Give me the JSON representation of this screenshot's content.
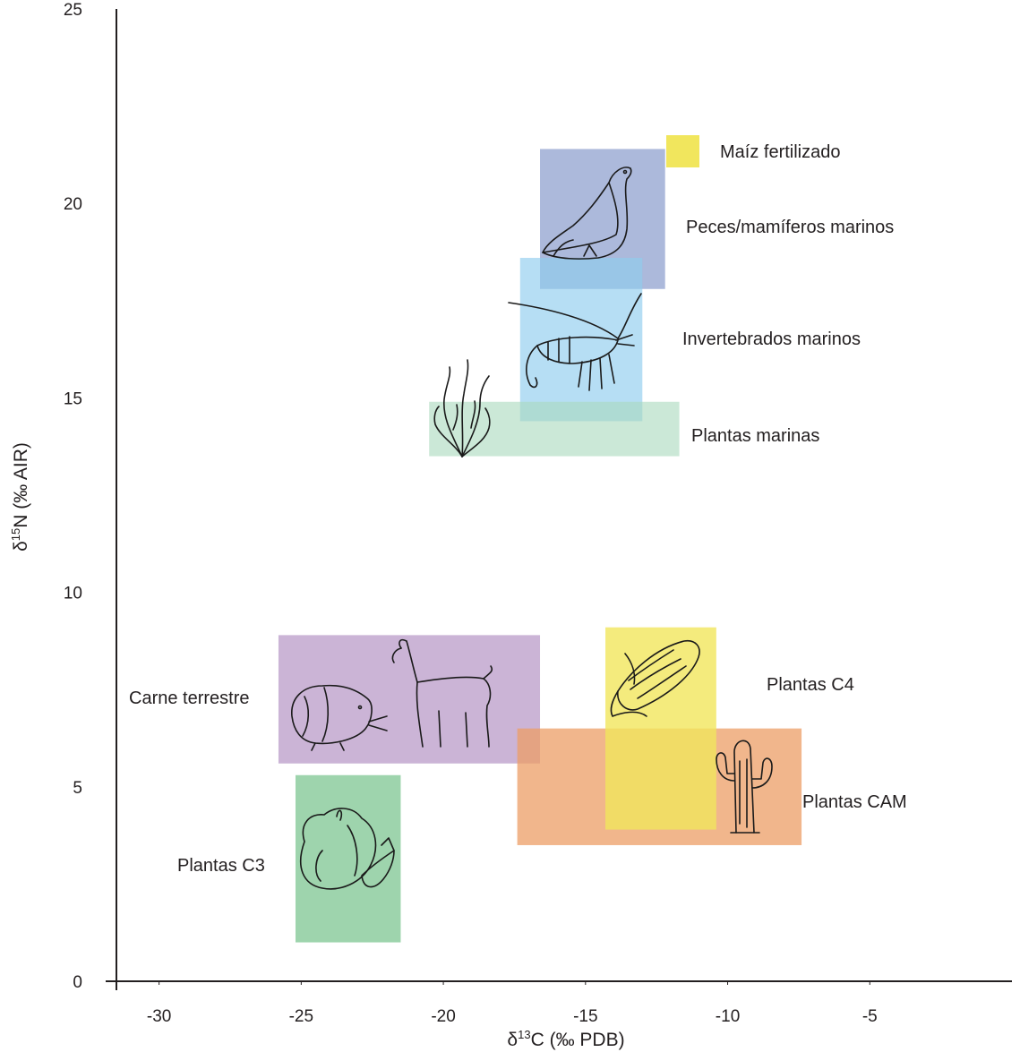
{
  "chart_data": {
    "type": "range-box",
    "xlabel": {
      "base": "δ",
      "sup": "13",
      "rest": "C (‰ PDB)"
    },
    "ylabel": {
      "base": "δ",
      "sup": "15",
      "rest": "N (‰ AIR)"
    },
    "xlim": [
      -31.5,
      0
    ],
    "ylim": [
      0,
      25
    ],
    "x_ticks": [
      -30,
      -25,
      -20,
      -15,
      -10,
      -5
    ],
    "y_ticks": [
      0,
      5,
      10,
      15,
      20,
      25
    ],
    "regions": [
      {
        "id": "peces",
        "label": "Peces/mamíferos marinos",
        "color": "#7f93c8",
        "opacity": 0.65,
        "x": [
          -16.6,
          -12.2
        ],
        "y": [
          17.8,
          21.4
        ],
        "icon": "sea-lion-icon"
      },
      {
        "id": "invertebrados",
        "label": "Invertebrados marinos",
        "color": "#8fcdee",
        "opacity": 0.65,
        "x": [
          -17.3,
          -13.0
        ],
        "y": [
          14.4,
          18.6
        ],
        "icon": "shrimp-icon"
      },
      {
        "id": "plantas-marinas",
        "label": "Plantas marinas",
        "color": "#a8d8bc",
        "opacity": 0.6,
        "x": [
          -20.5,
          -11.7
        ],
        "y": [
          13.5,
          14.9
        ],
        "icon": "seaweed-icon"
      },
      {
        "id": "carne",
        "label": "Carne terrestre",
        "color": "#b594c4",
        "opacity": 0.7,
        "x": [
          -25.8,
          -16.6
        ],
        "y": [
          5.6,
          8.9
        ],
        "icon": "llama-guinea-pig-icon"
      },
      {
        "id": "c3",
        "label": "Plantas C3",
        "color": "#7ec591",
        "opacity": 0.75,
        "x": [
          -25.2,
          -21.5
        ],
        "y": [
          1.0,
          5.3
        ],
        "icon": "vegetables-icon"
      },
      {
        "id": "cam",
        "label": "Plantas CAM",
        "color": "#ec9e66",
        "opacity": 0.75,
        "x": [
          -17.4,
          -7.4
        ],
        "y": [
          3.5,
          6.5
        ],
        "icon": "cactus-icon"
      },
      {
        "id": "c4",
        "label": "Plantas C4",
        "color": "#f1e65d",
        "opacity": 0.8,
        "x": [
          -14.3,
          -10.4
        ],
        "y": [
          3.9,
          9.1
        ],
        "icon": "corn-icon"
      }
    ],
    "legend": {
      "label": "Maíz fertilizado",
      "color": "#f1e65d",
      "placement": "top-right"
    }
  }
}
